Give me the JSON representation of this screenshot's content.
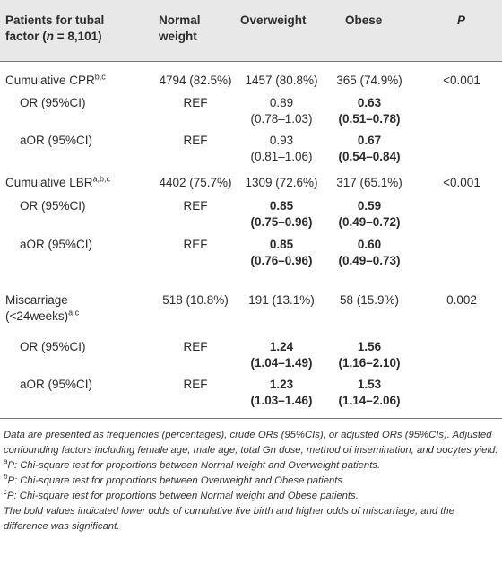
{
  "header": {
    "col1_line1": "Patients for tubal",
    "col1_line2_pre": "factor (",
    "col1_n": "n",
    "col1_line2_post": " = 8,101)",
    "col2_line1": "Normal",
    "col2_line2": "weight",
    "col3": "Overweight",
    "col4": "Obese",
    "col5": "P"
  },
  "rows": {
    "cpr": {
      "label": "Cumulative CPR",
      "label_sup": "b,c",
      "normal": "4794 (82.5%)",
      "overweight": "1457 (80.8%)",
      "obese": "365 (74.9%)",
      "p": "<0.001"
    },
    "cpr_or": {
      "label": "OR (95%CI)",
      "normal": "REF",
      "overweight_1": "0.89",
      "overweight_2": "(0.78–1.03)",
      "obese_1": "0.63",
      "obese_2": "(0.51–0.78)"
    },
    "cpr_aor": {
      "label": "aOR (95%CI)",
      "normal": "REF",
      "overweight_1": "0.93",
      "overweight_2": "(0.81–1.06)",
      "obese_1": "0.67",
      "obese_2": "(0.54–0.84)"
    },
    "lbr": {
      "label": "Cumulative LBR",
      "label_sup": "a,b,c",
      "normal": "4402 (75.7%)",
      "overweight": "1309 (72.6%)",
      "obese": "317 (65.1%)",
      "p": "<0.001"
    },
    "lbr_or": {
      "label": "OR (95%CI)",
      "normal": "REF",
      "overweight_1": "0.85",
      "overweight_2": "(0.75–0.96)",
      "obese_1": "0.59",
      "obese_2": "(0.49–0.72)"
    },
    "lbr_aor": {
      "label": "aOR (95%CI)",
      "normal": "REF",
      "overweight_1": "0.85",
      "overweight_2": "(0.76–0.96)",
      "obese_1": "0.60",
      "obese_2": "(0.49–0.73)"
    },
    "misc": {
      "label_1": "Miscarriage",
      "label_2": "(<24weeks)",
      "label_sup": "a,c",
      "normal": "518 (10.8%)",
      "overweight": "191 (13.1%)",
      "obese": "58 (15.9%)",
      "p": "0.002"
    },
    "misc_or": {
      "label": "OR (95%CI)",
      "normal": "REF",
      "overweight_1": "1.24",
      "overweight_2": "(1.04–1.49)",
      "obese_1": "1.56",
      "obese_2": "(1.16–2.10)"
    },
    "misc_aor": {
      "label": "aOR (95%CI)",
      "normal": "REF",
      "overweight_1": "1.23",
      "overweight_2": "(1.03–1.46)",
      "obese_1": "1.53",
      "obese_2": "(1.14–2.06)"
    }
  },
  "footnotes": {
    "intro": "Data are presented as frequencies (percentages), crude ORs (95%CIs), or adjusted ORs (95%CIs). Adjusted confounding factors including female age, male age, total Gn dose, method of insemination, and oocytes yield.",
    "a_mark": "a",
    "a_text": "P: Chi-square test for proportions between Normal weight and Overweight patients.",
    "b_mark": "b",
    "b_text": "P: Chi-square test for proportions between Overweight and Obese patients.",
    "c_mark": "c",
    "c_text": "P: Chi-square test for proportions between Normal weight and Obese patients.",
    "bold_note": "The bold values indicated lower odds of cumulative live birth and higher odds of miscarriage, and the difference was significant."
  }
}
